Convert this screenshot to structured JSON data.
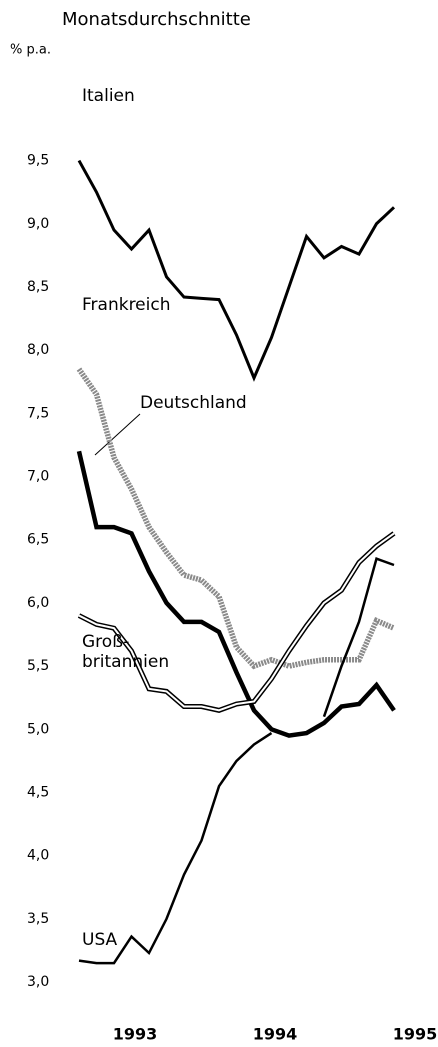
{
  "chart_data": {
    "type": "line",
    "title": "Monatsdurchschnitte",
    "y_label": "% p.a.",
    "x": [
      1992.6,
      1992.725,
      1992.85,
      1992.975,
      1993.1,
      1993.225,
      1993.35,
      1993.475,
      1993.6,
      1993.725,
      1993.85,
      1993.975,
      1994.1,
      1994.225,
      1994.35,
      1994.475,
      1994.6,
      1994.725,
      1994.85
    ],
    "xlim": [
      1992.5,
      1995.1
    ],
    "xticks": [
      1993,
      1994,
      1995
    ],
    "ylim": [
      2.7,
      9.9
    ],
    "yticks": [
      {
        "value": 3.0,
        "label": "3,0"
      },
      {
        "value": 3.5,
        "label": "3,5"
      },
      {
        "value": 4.0,
        "label": "4,0"
      },
      {
        "value": 4.5,
        "label": "4,5"
      },
      {
        "value": 5.0,
        "label": "5,0"
      },
      {
        "value": 5.5,
        "label": "5,5"
      },
      {
        "value": 6.0,
        "label": "6,0"
      },
      {
        "value": 6.5,
        "label": "6,5"
      },
      {
        "value": 7.0,
        "label": "7,0"
      },
      {
        "value": 7.5,
        "label": "7,5"
      },
      {
        "value": 8.0,
        "label": "8,0"
      },
      {
        "value": 8.5,
        "label": "8,5"
      },
      {
        "value": 9.0,
        "label": "9,0"
      },
      {
        "value": 9.5,
        "label": "9,5"
      }
    ],
    "grid": false,
    "series": [
      {
        "name": "Italien",
        "color": "#000000",
        "values": [
          9.5,
          9.25,
          8.95,
          8.8,
          8.95,
          8.58,
          8.42,
          8.41,
          8.4,
          8.12,
          7.78,
          8.1,
          8.5,
          8.9,
          8.73,
          8.82,
          8.76,
          9.0,
          9.13
        ]
      },
      {
        "name": "Frankreich",
        "color": "#8a8a8a",
        "values": [
          7.85,
          7.65,
          7.15,
          6.9,
          6.6,
          6.4,
          6.22,
          6.18,
          6.05,
          5.65,
          5.5,
          5.55,
          5.5,
          5.53,
          5.55,
          5.55,
          5.55,
          5.86,
          5.8
        ]
      },
      {
        "name": "Deutschland",
        "color": "#000000",
        "values": [
          7.2,
          6.6,
          6.6,
          6.55,
          6.25,
          6.0,
          5.85,
          5.85,
          5.77,
          5.45,
          5.15,
          5.0,
          4.95,
          4.97,
          5.05,
          5.18,
          5.2,
          5.35,
          5.15
        ]
      },
      {
        "name": "Groß-\nbritannien",
        "color": "#ffffff",
        "values": [
          5.9,
          5.83,
          5.8,
          5.62,
          5.32,
          5.3,
          5.18,
          5.18,
          5.15,
          5.2,
          5.22,
          5.4,
          5.62,
          5.82,
          6.0,
          6.1,
          6.32,
          6.45,
          6.55
        ]
      },
      {
        "name": "USA",
        "color": "#000000",
        "values": [
          3.17,
          3.15,
          3.15,
          3.36,
          3.23,
          3.5,
          3.85,
          4.12,
          4.55,
          4.75,
          4.88,
          4.97,
          null,
          null,
          5.1,
          5.5,
          5.85,
          6.35,
          6.3
        ]
      }
    ]
  }
}
